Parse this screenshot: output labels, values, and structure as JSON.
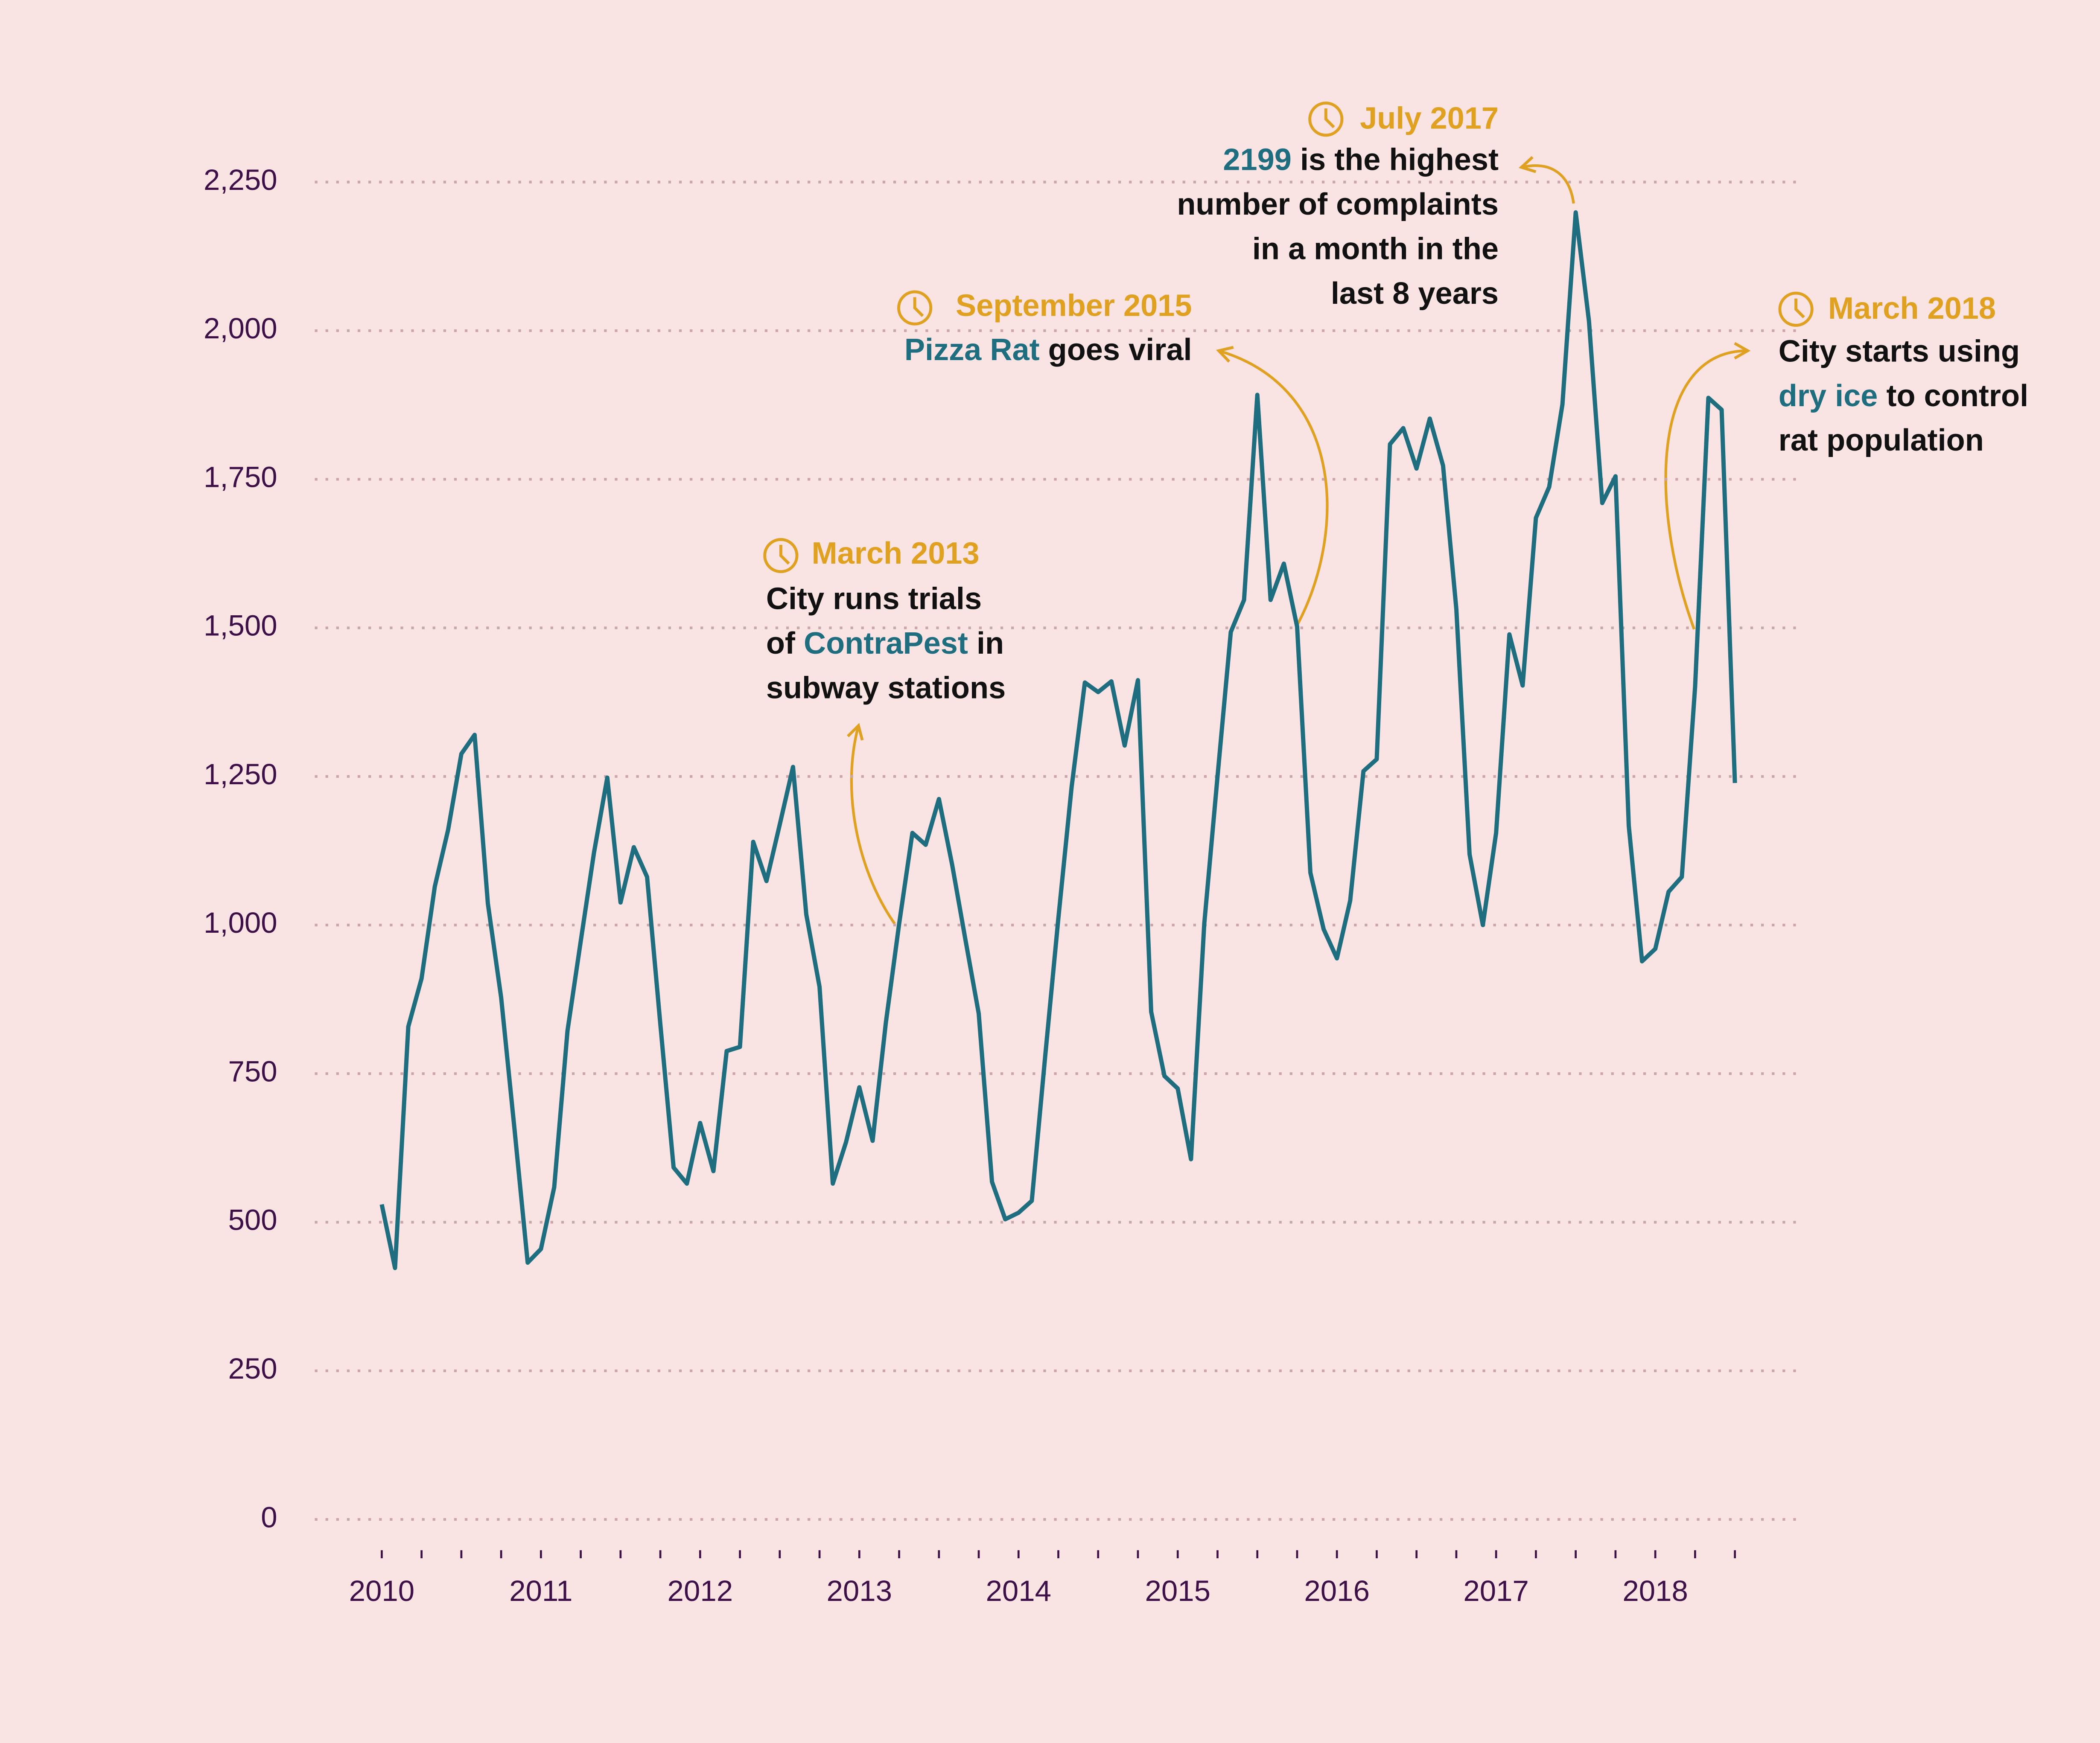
{
  "chart_data": {
    "type": "line",
    "categories": [
      "2010",
      null,
      null,
      null,
      null,
      null,
      null,
      null,
      null,
      null,
      null,
      null,
      "2011",
      null,
      null,
      null,
      null,
      null,
      null,
      null,
      null,
      null,
      null,
      null,
      "2012",
      null,
      null,
      null,
      null,
      null,
      null,
      null,
      null,
      null,
      null,
      null,
      "2013",
      null,
      null,
      null,
      null,
      null,
      null,
      null,
      null,
      null,
      null,
      null,
      "2014",
      null,
      null,
      null,
      null,
      null,
      null,
      null,
      null,
      null,
      null,
      null,
      "2015",
      null,
      null,
      null,
      null,
      null,
      null,
      null,
      null,
      null,
      null,
      null,
      "2016",
      null,
      null,
      null,
      null,
      null,
      null,
      null,
      null,
      null,
      null,
      null,
      "2017",
      null,
      null,
      null,
      null,
      null,
      null,
      null,
      null,
      null,
      null,
      null,
      "2018",
      null,
      null,
      null,
      null,
      null,
      null
    ],
    "series": [
      {
        "color": "#1e6e80",
        "values": [
          530,
          423,
          829,
          910,
          1065,
          1160,
          1288,
          1320,
          1036,
          878,
          658,
          432,
          455,
          559,
          822,
          973,
          1122,
          1248,
          1038,
          1131,
          1081,
          833,
          592,
          565,
          667,
          586,
          788,
          795,
          1140,
          1074,
          1169,
          1266,
          1018,
          896,
          565,
          635,
          727,
          637,
          836,
          1002,
          1155,
          1135,
          1212,
          1101,
          975,
          851,
          568,
          505,
          516,
          536,
          777,
          1011,
          1232,
          1408,
          1392,
          1410,
          1302,
          1412,
          854,
          746,
          725,
          606,
          1002,
          1250,
          1493,
          1547,
          1892,
          1547,
          1608,
          1502,
          1088,
          993,
          944,
          1041,
          1259,
          1279,
          1809,
          1836,
          1768,
          1852,
          1773,
          1532,
          1119,
          1000,
          1155,
          1489,
          1403,
          1685,
          1737,
          1876,
          2199,
          2016,
          1710,
          1755,
          1167,
          939,
          960,
          1056,
          1081,
          1401,
          1887,
          1867,
          1239
        ]
      }
    ],
    "ylim": [
      0,
      2250
    ],
    "yticks": [
      0,
      250,
      500,
      750,
      {
        "value": 1000,
        "label": "1,000"
      },
      {
        "value": 1250,
        "label": "1,250"
      },
      {
        "value": 1500,
        "label": "1,500"
      },
      {
        "value": 1750,
        "label": "1,750"
      },
      {
        "value": 2000,
        "label": "2,000"
      },
      {
        "value": 2250,
        "label": "2,250"
      }
    ],
    "grid": true,
    "annotations": [
      {
        "title": "July 2017",
        "lines": [
          [
            {
              "text": "2199",
              "color": "#1e6e80"
            },
            {
              "text": " is the highest"
            }
          ],
          [
            {
              "text": "number of complaints"
            }
          ],
          [
            {
              "text": "in a month in the"
            }
          ],
          [
            {
              "text": "last 8 years"
            }
          ]
        ]
      },
      {
        "title": "September 2015",
        "lines": [
          [
            {
              "text": "Pizza Rat",
              "color": "#1e6e80"
            },
            {
              "text": " goes viral"
            }
          ]
        ]
      },
      {
        "title": "March 2013",
        "lines": [
          [
            {
              "text": "City runs trials"
            }
          ],
          [
            {
              "text": "of "
            },
            {
              "text": "ContraPest",
              "color": "#1e6e80"
            },
            {
              "text": " in"
            }
          ],
          [
            {
              "text": "subway stations"
            }
          ]
        ]
      },
      {
        "title": "March 2018",
        "lines": [
          [
            {
              "text": "City starts using"
            }
          ],
          [
            {
              "text": "dry ice",
              "color": "#1e6e80"
            },
            {
              "text": " to control"
            }
          ],
          [
            {
              "text": "rat population"
            }
          ]
        ]
      }
    ]
  }
}
